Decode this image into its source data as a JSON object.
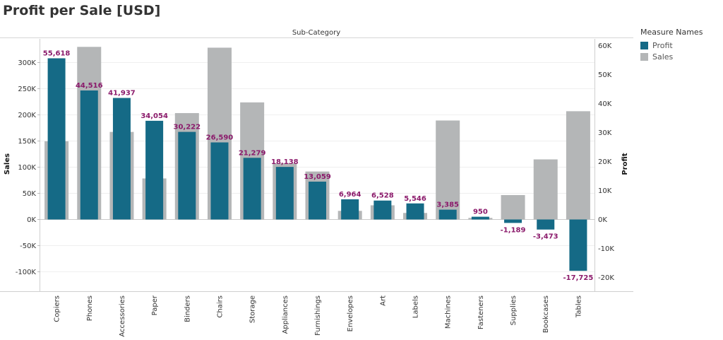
{
  "title": "Profit per Sale [USD]",
  "colors": {
    "profit": "#156A86",
    "sales": "#B4B6B7",
    "label": "#8B1A6B"
  },
  "legend": {
    "title": "Measure Names",
    "items": [
      {
        "name": "Profit",
        "color": "#156A86"
      },
      {
        "name": "Sales",
        "color": "#B4B6B7"
      }
    ]
  },
  "chart_data": {
    "type": "bar",
    "header": "Sub-Category",
    "categories": [
      "Copiers",
      "Phones",
      "Accessories",
      "Paper",
      "Binders",
      "Chairs",
      "Storage",
      "Appliances",
      "Furnishings",
      "Envelopes",
      "Art",
      "Labels",
      "Machines",
      "Fasteners",
      "Supplies",
      "Bookcases",
      "Tables"
    ],
    "series": [
      {
        "name": "Sales",
        "axis": "left",
        "values": [
          149528,
          330007,
          167380,
          78479,
          203413,
          328449,
          223844,
          107532,
          91705,
          16476,
          27119,
          12486,
          189239,
          3024,
          46674,
          114880,
          206966
        ]
      },
      {
        "name": "Profit",
        "axis": "right",
        "values": [
          55618,
          44516,
          41937,
          34054,
          30222,
          26590,
          21279,
          18138,
          13059,
          6964,
          6528,
          5546,
          3385,
          950,
          -1189,
          -3473,
          -17725
        ],
        "labels": [
          "55,618",
          "44,516",
          "41,937",
          "34,054",
          "30,222",
          "26,590",
          "21,279",
          "18,138",
          "13,059",
          "6,964",
          "6,528",
          "5,546",
          "3,385",
          "950",
          "-1,189",
          "-3,473",
          "-17,725"
        ]
      }
    ],
    "left_axis": {
      "label": "Sales",
      "ticks": [
        300000,
        250000,
        200000,
        150000,
        100000,
        50000,
        0,
        -50000,
        -100000
      ],
      "tick_labels": [
        "300K",
        "250K",
        "200K",
        "150K",
        "100K",
        "50K",
        "0K",
        "-50K",
        "-100K"
      ]
    },
    "right_axis": {
      "label": "Profit",
      "ticks": [
        60000,
        50000,
        40000,
        30000,
        20000,
        10000,
        0,
        -10000,
        -20000
      ],
      "tick_labels": [
        "60K",
        "50K",
        "40K",
        "30K",
        "20K",
        "10K",
        "0K",
        "-10K",
        "-20K"
      ]
    },
    "grid": true
  }
}
